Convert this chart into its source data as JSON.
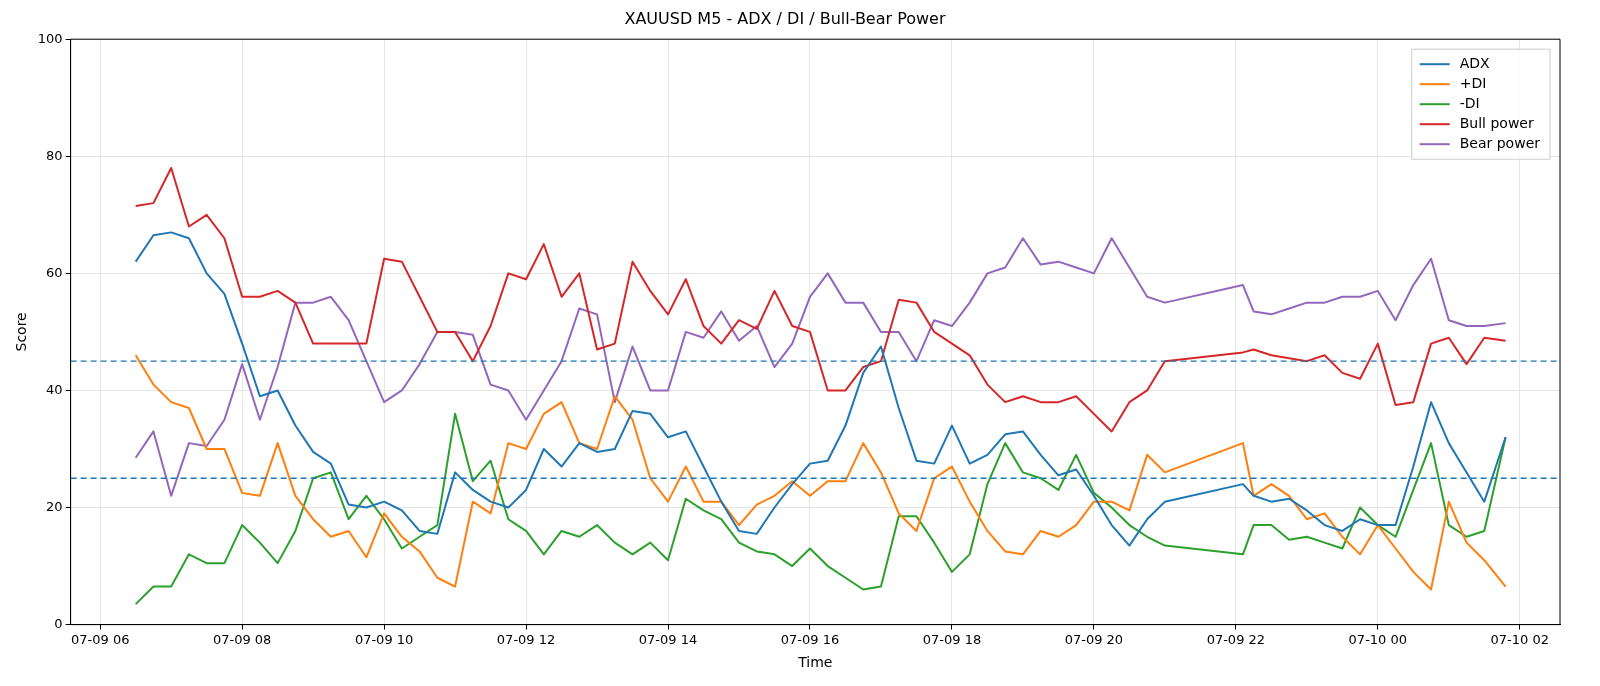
{
  "chart_data": {
    "type": "line",
    "title": "XAUUSD M5 - ADX / DI / Bull-Bear Power",
    "xlabel": "Time",
    "ylabel": "Score",
    "x": [
      "--07-09T06:30",
      "--07-09T06:45",
      "--07-09T07:00",
      "--07-09T07:15",
      "--07-09T07:30",
      "--07-09T07:45",
      "--07-09T08:00",
      "--07-09T08:15",
      "--07-09T08:30",
      "--07-09T08:45",
      "--07-09T09:00",
      "--07-09T09:15",
      "--07-09T09:30",
      "--07-09T09:45",
      "--07-09T10:00",
      "--07-09T10:15",
      "--07-09T10:30",
      "--07-09T10:45",
      "--07-09T11:00",
      "--07-09T11:15",
      "--07-09T11:30",
      "--07-09T11:45",
      "--07-09T12:00",
      "--07-09T12:15",
      "--07-09T12:30",
      "--07-09T12:45",
      "--07-09T13:00",
      "--07-09T13:15",
      "--07-09T13:30",
      "--07-09T13:45",
      "--07-09T14:00",
      "--07-09T14:15",
      "--07-09T14:30",
      "--07-09T14:45",
      "--07-09T15:00",
      "--07-09T15:15",
      "--07-09T15:30",
      "--07-09T15:45",
      "--07-09T16:00",
      "--07-09T16:15",
      "--07-09T16:30",
      "--07-09T16:45",
      "--07-09T17:00",
      "--07-09T17:15",
      "--07-09T17:30",
      "--07-09T17:45",
      "--07-09T18:00",
      "--07-09T18:15",
      "--07-09T18:30",
      "--07-09T18:45",
      "--07-09T19:00",
      "--07-09T19:15",
      "--07-09T19:30",
      "--07-09T19:45",
      "--07-09T20:00",
      "--07-09T20:15",
      "--07-09T20:30",
      "--07-09T20:45",
      "--07-09T21:00",
      "--07-09T22:06",
      "--07-09T22:15",
      "--07-09T22:30",
      "--07-09T22:45",
      "--07-09T23:00",
      "--07-09T23:15",
      "--07-09T23:30",
      "--07-09T23:45",
      "--07-10T00:00",
      "--07-10T00:15",
      "--07-10T00:30",
      "--07-10T00:45",
      "--07-10T01:00",
      "--07-10T01:15",
      "--07-10T01:30",
      "--07-10T01:48"
    ],
    "series": [
      {
        "name": "ADX",
        "color": "#1f77b4",
        "values": [
          62,
          66.5,
          67,
          66,
          60,
          56.5,
          48,
          39,
          40,
          34,
          29.5,
          27.5,
          20.5,
          20,
          21,
          19.5,
          16,
          15.5,
          26,
          23,
          21,
          20,
          23,
          30,
          27,
          31,
          29.5,
          30,
          36.5,
          36,
          32,
          33,
          27,
          21,
          16,
          15.5,
          20,
          24,
          27.5,
          28,
          34,
          43,
          47.5,
          37,
          28,
          27.5,
          34,
          27.5,
          29,
          32.5,
          33,
          29,
          25.5,
          26.5,
          22,
          17,
          13.5,
          18,
          21,
          24,
          22,
          21,
          21.5,
          19.5,
          17,
          16,
          18,
          17,
          17,
          27,
          38,
          31,
          26,
          21,
          32
        ]
      },
      {
        "name": "+DI",
        "color": "#ff7f0e",
        "values": [
          46,
          41,
          38,
          37,
          30,
          30,
          22.5,
          22,
          31,
          22,
          18,
          15,
          16,
          11.5,
          19,
          15,
          12.5,
          8,
          6.5,
          21,
          19,
          31,
          30,
          36,
          38,
          31,
          30,
          39,
          35,
          25,
          21,
          27,
          21,
          21,
          17,
          20.5,
          22,
          24.5,
          22,
          24.5,
          24.5,
          31,
          26,
          19,
          16,
          25,
          27,
          21,
          16,
          12.5,
          12,
          16,
          15,
          17,
          21,
          21,
          19.5,
          29,
          26,
          31,
          22,
          24,
          22,
          18,
          19,
          15,
          12,
          17,
          13,
          9,
          6,
          21,
          14,
          11,
          6.5
        ]
      },
      {
        "name": "-DI",
        "color": "#2ca02c",
        "values": [
          3.5,
          6.5,
          6.5,
          12,
          10.5,
          10.5,
          17,
          14,
          10.5,
          16,
          25,
          26,
          18,
          22,
          18,
          13,
          15,
          17,
          36,
          24.5,
          28,
          18,
          16,
          12,
          16,
          15,
          17,
          14,
          12,
          14,
          11,
          21.5,
          19.5,
          18,
          14,
          12.5,
          12,
          10,
          13,
          10,
          8,
          6,
          6.5,
          18.5,
          18.5,
          14,
          9,
          12,
          24,
          31,
          26,
          25,
          23,
          29,
          22.5,
          20,
          17,
          15,
          13.5,
          12,
          17,
          17,
          14.5,
          15,
          14,
          13,
          20,
          17,
          15,
          23,
          31,
          17,
          15,
          16,
          32
        ]
      },
      {
        "name": "Bull power",
        "color": "#d62728",
        "values": [
          71.5,
          72,
          78,
          68,
          70,
          66,
          56,
          56,
          57,
          55,
          48,
          48,
          48,
          48,
          62.5,
          62,
          56,
          50,
          50,
          45,
          51,
          60,
          59,
          65,
          56,
          60,
          47,
          48,
          62,
          57,
          53,
          59,
          51,
          48,
          52,
          50.5,
          57,
          51,
          50,
          40,
          40,
          44,
          45,
          55.5,
          55,
          50,
          48,
          46,
          41,
          38,
          39,
          38,
          38,
          39,
          36,
          33,
          38,
          40,
          45,
          46.5,
          47,
          46,
          45.5,
          45,
          46,
          43,
          42,
          48,
          37.5,
          38,
          48,
          49,
          44.5,
          49,
          48.5
        ]
      },
      {
        "name": "Bear power",
        "color": "#9467bd",
        "values": [
          28.5,
          33,
          22,
          31,
          30.5,
          35,
          44.5,
          35,
          44,
          55,
          55,
          56,
          52,
          45,
          38,
          40,
          44.5,
          50,
          50,
          49.5,
          41,
          40,
          35,
          40,
          45,
          54,
          53,
          38,
          47.5,
          40,
          40,
          50,
          49,
          53.5,
          48.5,
          51,
          44,
          48,
          56,
          60,
          55,
          55,
          50,
          50,
          45,
          52,
          51,
          55,
          60,
          61,
          66,
          61.5,
          62,
          61,
          60,
          66,
          61,
          56,
          55,
          58,
          53.5,
          53,
          54,
          55,
          55,
          56,
          56,
          57,
          52,
          58,
          62.5,
          52,
          51,
          51,
          51.5
        ]
      }
    ],
    "xlim": [
      "--07-09T05:35",
      "--07-10T02:34"
    ],
    "xticks": [
      {
        "value": "--07-09T06:00",
        "label": "07-09 06"
      },
      {
        "value": "--07-09T08:00",
        "label": "07-09 08"
      },
      {
        "value": "--07-09T10:00",
        "label": "07-09 10"
      },
      {
        "value": "--07-09T12:00",
        "label": "07-09 12"
      },
      {
        "value": "--07-09T14:00",
        "label": "07-09 14"
      },
      {
        "value": "--07-09T16:00",
        "label": "07-09 16"
      },
      {
        "value": "--07-09T18:00",
        "label": "07-09 18"
      },
      {
        "value": "--07-09T20:00",
        "label": "07-09 20"
      },
      {
        "value": "--07-09T22:00",
        "label": "07-09 22"
      },
      {
        "value": "--07-10T00:00",
        "label": "07-10 00"
      },
      {
        "value": "--07-10T02:00",
        "label": "07-10 02"
      }
    ],
    "ylim": [
      0,
      100
    ],
    "yticks": [
      0,
      20,
      40,
      60,
      80,
      100
    ],
    "ref_lines": [
      {
        "axis": "y",
        "value": 45,
        "color": "#1f77b4",
        "line_style": "dashed"
      },
      {
        "axis": "y",
        "value": 25,
        "color": "#1f77b4",
        "line_style": "dashed"
      }
    ],
    "grid": true,
    "legend": "top right",
    "line_style": "solid",
    "marker": "none"
  }
}
